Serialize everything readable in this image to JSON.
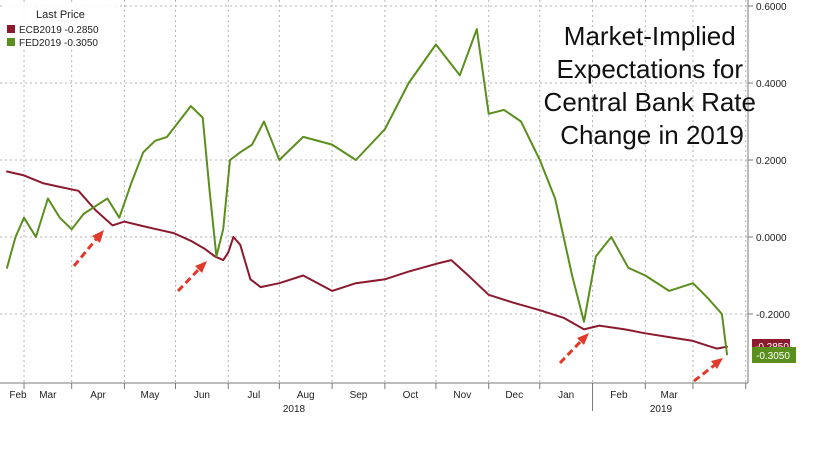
{
  "chart_data": {
    "type": "line",
    "title_lines": [
      "Market-Implied",
      "Expectations for",
      "Central Bank Rate",
      "Change in 2019"
    ],
    "legend": {
      "heading": "Last Price",
      "entries": [
        "ECB2019  -0.2850",
        "FED2019  -0.3050"
      ],
      "placement": "top-left"
    },
    "x_ticks": [
      "Feb",
      "Mar",
      "Apr",
      "May",
      "Jun",
      "Jul",
      "Aug",
      "Sep",
      "Oct",
      "Nov",
      "Dec",
      "Jan",
      "Feb",
      "Mar"
    ],
    "x_year_labels": [
      "2018",
      "2019"
    ],
    "y_ticks": [
      "0.6000",
      "0.4000",
      "0.2000",
      "0.0000",
      "-0.2000"
    ],
    "ylim": [
      -0.38,
      0.6
    ],
    "grid": true,
    "badges": {
      "ecb": "-0.2850",
      "fed": "-0.3050"
    },
    "series": [
      {
        "name": "ECB2019",
        "color": "#8b1a2e",
        "x": [
          "2018-01-22",
          "2018-02-01",
          "2018-02-12",
          "2018-02-22",
          "2018-03-05",
          "2018-03-15",
          "2018-03-25",
          "2018-04-01",
          "2018-04-10",
          "2018-04-20",
          "2018-04-30",
          "2018-05-10",
          "2018-05-18",
          "2018-05-24",
          "2018-05-29",
          "2018-06-01",
          "2018-06-04",
          "2018-06-08",
          "2018-06-14",
          "2018-06-20",
          "2018-07-01",
          "2018-07-15",
          "2018-08-01",
          "2018-08-15",
          "2018-09-01",
          "2018-09-15",
          "2018-10-01",
          "2018-10-10",
          "2018-10-20",
          "2018-11-01",
          "2018-11-15",
          "2018-12-01",
          "2018-12-15",
          "2018-12-27",
          "2019-01-05",
          "2019-01-20",
          "2019-02-01",
          "2019-02-15",
          "2019-03-01",
          "2019-03-08",
          "2019-03-15",
          "2019-03-21"
        ],
        "values": [
          0.17,
          0.16,
          0.14,
          0.13,
          0.12,
          0.07,
          0.03,
          0.04,
          0.03,
          0.02,
          0.01,
          -0.01,
          -0.03,
          -0.05,
          -0.06,
          -0.04,
          0.0,
          -0.02,
          -0.11,
          -0.13,
          -0.12,
          -0.1,
          -0.14,
          -0.12,
          -0.11,
          -0.09,
          -0.07,
          -0.06,
          -0.1,
          -0.15,
          -0.17,
          -0.19,
          -0.21,
          -0.24,
          -0.23,
          -0.24,
          -0.25,
          -0.26,
          -0.27,
          -0.28,
          -0.29,
          -0.285
        ]
      },
      {
        "name": "FED2019",
        "color": "#5a8f1d",
        "x": [
          "2018-01-22",
          "2018-01-27",
          "2018-02-01",
          "2018-02-08",
          "2018-02-15",
          "2018-02-22",
          "2018-03-01",
          "2018-03-08",
          "2018-03-15",
          "2018-03-22",
          "2018-03-29",
          "2018-04-05",
          "2018-04-12",
          "2018-04-19",
          "2018-04-26",
          "2018-05-03",
          "2018-05-10",
          "2018-05-17",
          "2018-05-21",
          "2018-05-25",
          "2018-05-29",
          "2018-06-02",
          "2018-06-08",
          "2018-06-15",
          "2018-06-22",
          "2018-07-01",
          "2018-07-15",
          "2018-08-01",
          "2018-08-15",
          "2018-09-01",
          "2018-09-15",
          "2018-10-01",
          "2018-10-15",
          "2018-10-25",
          "2018-11-01",
          "2018-11-10",
          "2018-11-20",
          "2018-12-01",
          "2018-12-10",
          "2018-12-20",
          "2018-12-27",
          "2019-01-03",
          "2019-01-12",
          "2019-01-22",
          "2019-02-01",
          "2019-02-15",
          "2019-03-01",
          "2019-03-10",
          "2019-03-18",
          "2019-03-21"
        ],
        "values": [
          -0.08,
          0.0,
          0.05,
          0.0,
          0.1,
          0.05,
          0.02,
          0.06,
          0.08,
          0.1,
          0.05,
          0.14,
          0.22,
          0.25,
          0.26,
          0.3,
          0.34,
          0.31,
          0.12,
          -0.05,
          0.02,
          0.2,
          0.22,
          0.24,
          0.3,
          0.2,
          0.26,
          0.24,
          0.2,
          0.28,
          0.4,
          0.5,
          0.42,
          0.54,
          0.32,
          0.33,
          0.3,
          0.2,
          0.1,
          -0.1,
          -0.22,
          -0.05,
          0.0,
          -0.08,
          -0.1,
          -0.14,
          -0.12,
          -0.16,
          -0.2,
          -0.305
        ]
      }
    ]
  }
}
